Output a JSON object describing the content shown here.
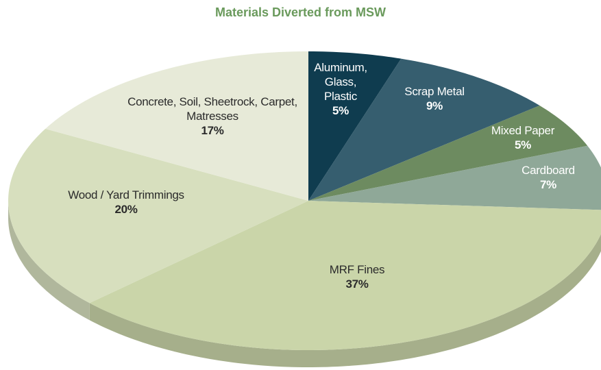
{
  "chart_data": {
    "type": "pie",
    "title": "Materials Diverted from MSW",
    "categories": [
      "Aluminum, Glass, Plastic",
      "Scrap Metal",
      "Mixed Paper",
      "Cardboard",
      "MRF Fines",
      "Wood / Yard Trimmings",
      "Concrete, Soil, Sheetrock, Carpet, Matresses"
    ],
    "values": [
      5,
      9,
      5,
      7,
      37,
      20,
      17
    ],
    "value_labels": [
      "5%",
      "9%",
      "5%",
      "7%",
      "37%",
      "20%",
      "17%"
    ],
    "colors": [
      "#0f3c4f",
      "#365e6f",
      "#6d8b60",
      "#8fa898",
      "#cad5a9",
      "#d7dfbe",
      "#e7ead8"
    ]
  }
}
